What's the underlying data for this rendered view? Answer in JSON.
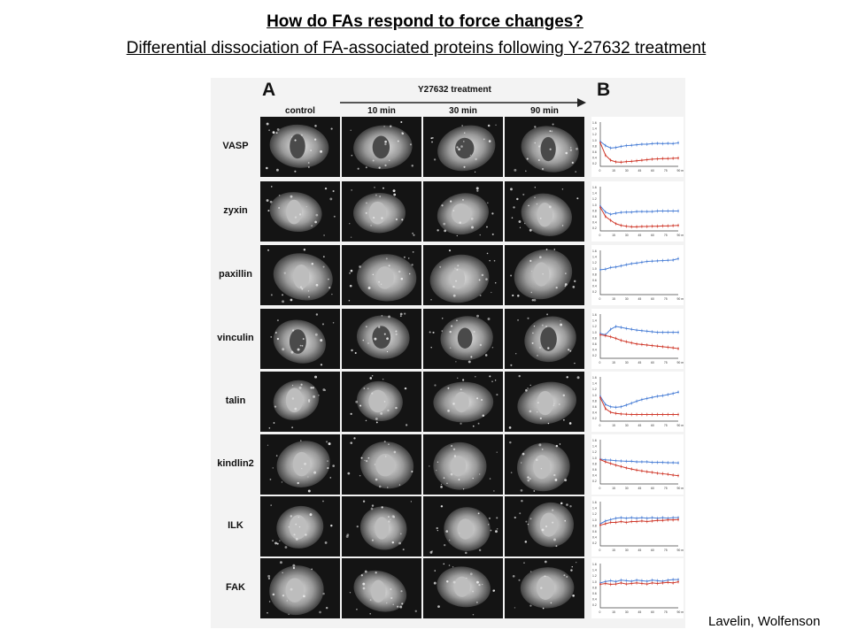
{
  "slide": {
    "title": "How do FAs respond to force changes?",
    "subtitle": "Differential dissociation of FA-associated proteins following Y-27632 treatment",
    "credit": "Lavelin, Wolfenson"
  },
  "figure": {
    "panel_a_label": "A",
    "panel_b_label": "B",
    "treatment_label": "Y27632 treatment",
    "columns": [
      "control",
      "10 min",
      "30 min",
      "90 min"
    ],
    "rows": [
      "VASP",
      "zyxin",
      "paxillin",
      "vinculin",
      "talin",
      "kindlin2",
      "ILK",
      "FAK"
    ]
  },
  "chart_data": {
    "type": "line",
    "x_ticks": [
      "0",
      "15",
      "30",
      "45",
      "60",
      "75",
      "90 min"
    ],
    "y_ticks": [
      "1.6",
      "1.4",
      "1.2",
      "1.0",
      "0.8",
      "0.6",
      "0.4",
      "0.2"
    ],
    "series_colors": {
      "blue": "#4a7fd6",
      "red": "#d03a2c"
    },
    "plots": [
      {
        "protein": "VASP",
        "blue": [
          1.0,
          0.85,
          0.76,
          0.78,
          0.82,
          0.85,
          0.86,
          0.88,
          0.9,
          0.9,
          0.92,
          0.93,
          0.92,
          0.93,
          0.92,
          0.95
        ],
        "red": [
          0.95,
          0.5,
          0.32,
          0.26,
          0.25,
          0.27,
          0.28,
          0.3,
          0.32,
          0.34,
          0.36,
          0.37,
          0.38,
          0.38,
          0.39,
          0.4
        ]
      },
      {
        "protein": "zyxin",
        "blue": [
          1.0,
          0.78,
          0.7,
          0.74,
          0.77,
          0.78,
          0.78,
          0.8,
          0.8,
          0.8,
          0.8,
          0.82,
          0.82,
          0.82,
          0.82,
          0.82
        ],
        "red": [
          0.95,
          0.62,
          0.48,
          0.36,
          0.3,
          0.27,
          0.25,
          0.25,
          0.26,
          0.26,
          0.27,
          0.27,
          0.28,
          0.28,
          0.29,
          0.3
        ]
      },
      {
        "protein": "paxillin",
        "blue": [
          1.0,
          1.02,
          1.08,
          1.1,
          1.14,
          1.18,
          1.22,
          1.24,
          1.27,
          1.3,
          1.31,
          1.32,
          1.33,
          1.34,
          1.35,
          1.4
        ]
      },
      {
        "protein": "vinculin",
        "blue": [
          1.0,
          0.95,
          1.15,
          1.25,
          1.22,
          1.18,
          1.15,
          1.12,
          1.1,
          1.08,
          1.06,
          1.04,
          1.04,
          1.04,
          1.04,
          1.04
        ],
        "red": [
          0.95,
          0.92,
          0.88,
          0.82,
          0.75,
          0.7,
          0.66,
          0.62,
          0.6,
          0.58,
          0.56,
          0.54,
          0.52,
          0.5,
          0.48,
          0.45
        ]
      },
      {
        "protein": "talin",
        "blue": [
          1.0,
          0.7,
          0.62,
          0.6,
          0.62,
          0.68,
          0.75,
          0.82,
          0.88,
          0.92,
          0.96,
          1.0,
          1.02,
          1.06,
          1.1,
          1.15
        ],
        "red": [
          0.95,
          0.55,
          0.42,
          0.38,
          0.36,
          0.35,
          0.34,
          0.34,
          0.34,
          0.34,
          0.34,
          0.34,
          0.34,
          0.34,
          0.34,
          0.34
        ]
      },
      {
        "protein": "kindlin2",
        "blue": [
          1.0,
          0.97,
          0.96,
          0.94,
          0.93,
          0.92,
          0.92,
          0.9,
          0.9,
          0.9,
          0.88,
          0.88,
          0.88,
          0.87,
          0.87,
          0.86
        ],
        "red": [
          0.98,
          0.9,
          0.84,
          0.78,
          0.73,
          0.68,
          0.64,
          0.6,
          0.57,
          0.54,
          0.52,
          0.49,
          0.47,
          0.45,
          0.42,
          0.4
        ]
      },
      {
        "protein": "ILK",
        "blue": [
          0.9,
          1.0,
          1.05,
          1.1,
          1.12,
          1.1,
          1.12,
          1.1,
          1.12,
          1.1,
          1.12,
          1.1,
          1.12,
          1.1,
          1.12,
          1.12
        ],
        "red": [
          0.85,
          0.9,
          0.95,
          0.95,
          0.98,
          0.95,
          0.98,
          0.98,
          1.0,
          0.98,
          1.0,
          1.02,
          1.02,
          1.04,
          1.04,
          1.05
        ]
      },
      {
        "protein": "FAK",
        "blue": [
          1.0,
          1.05,
          1.08,
          1.05,
          1.1,
          1.08,
          1.06,
          1.1,
          1.08,
          1.06,
          1.1,
          1.08,
          1.06,
          1.1,
          1.12,
          1.12
        ],
        "red": [
          0.95,
          0.98,
          0.95,
          0.96,
          1.0,
          0.96,
          0.98,
          1.0,
          0.98,
          0.96,
          1.0,
          0.98,
          1.0,
          1.02,
          1.0,
          1.04
        ]
      }
    ]
  }
}
